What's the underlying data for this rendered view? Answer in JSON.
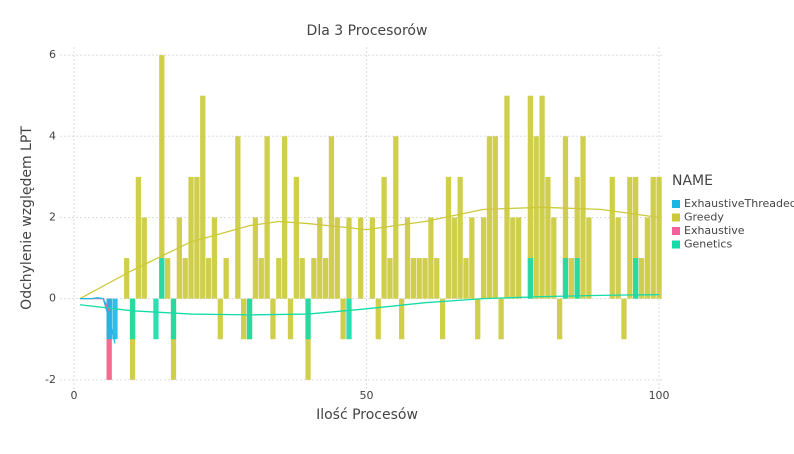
{
  "chart_data": {
    "type": "bar",
    "title": "Dla 3 Procesorów",
    "x_label": "Ilość Procesów",
    "y_label": "Odchylenie względem LPT",
    "legend_title": "NAME",
    "legend_position": "right",
    "grid": true,
    "xlim": [
      -2.4,
      100.5
    ],
    "ylim": [
      -2.3,
      6.2
    ],
    "xticks": [
      0,
      50,
      100
    ],
    "yticks": [
      -2,
      0,
      2,
      4,
      6
    ],
    "series": [
      {
        "name": "ExhaustiveThreaded",
        "color": "#1cb6e5",
        "x": [
          6,
          7
        ],
        "values": [
          -1,
          -1
        ],
        "trend_x": [
          1,
          3,
          4,
          5,
          6,
          7
        ],
        "trend_values": [
          0,
          0,
          0.02,
          0,
          -0.5,
          -1.1
        ]
      },
      {
        "name": "Greedy",
        "color": "#cbc93a",
        "x": [
          1,
          2,
          3,
          4,
          5,
          6,
          7,
          8,
          9,
          10,
          11,
          12,
          13,
          14,
          15,
          16,
          17,
          18,
          19,
          20,
          21,
          22,
          23,
          24,
          25,
          26,
          27,
          28,
          29,
          30,
          31,
          32,
          33,
          34,
          35,
          36,
          37,
          38,
          39,
          40,
          41,
          42,
          43,
          44,
          45,
          46,
          47,
          48,
          49,
          50,
          51,
          52,
          53,
          54,
          55,
          56,
          57,
          58,
          59,
          60,
          61,
          62,
          63,
          64,
          65,
          66,
          67,
          68,
          69,
          70,
          71,
          72,
          73,
          74,
          75,
          76,
          77,
          78,
          79,
          80,
          81,
          82,
          83,
          84,
          85,
          86,
          87,
          88,
          89,
          90,
          91,
          92,
          93,
          94,
          95,
          96,
          97,
          98,
          99,
          100
        ],
        "values": [
          0,
          0,
          0,
          0,
          0,
          -2,
          0,
          0,
          1,
          -2,
          3,
          2,
          0,
          0,
          6,
          1,
          -2,
          2,
          1,
          3,
          3,
          5,
          1,
          2,
          -1,
          1,
          0,
          4,
          -1,
          -1,
          2,
          1,
          4,
          -1,
          1,
          4,
          -1,
          3,
          1,
          -2,
          1,
          2,
          1,
          4,
          2,
          -1,
          2,
          0,
          2,
          0,
          2,
          -1,
          3,
          1,
          4,
          -1,
          2,
          1,
          1,
          1,
          2,
          1,
          -1,
          3,
          2,
          3,
          1,
          2,
          -1,
          2,
          4,
          4,
          -1,
          5,
          2,
          2,
          0,
          5,
          4,
          5,
          3,
          2,
          -1,
          4,
          1,
          3,
          4,
          2,
          0,
          0,
          0,
          3,
          2,
          -1,
          3,
          3,
          1,
          2,
          3,
          3
        ],
        "trend_x": [
          1,
          10,
          20,
          30,
          35,
          40,
          50,
          60,
          70,
          80,
          90,
          100
        ],
        "trend_values": [
          0,
          0.7,
          1.4,
          1.8,
          1.9,
          1.85,
          1.7,
          1.9,
          2.2,
          2.25,
          2.2,
          2.0
        ]
      },
      {
        "name": "Exhaustive",
        "color": "#f5609a",
        "x": [
          6
        ],
        "values": [
          -2
        ],
        "trend_x": [
          1,
          3,
          5,
          6
        ],
        "trend_values": [
          0,
          0,
          0,
          -0.3
        ]
      },
      {
        "name": "Genetics",
        "color": "#15dba9",
        "x": [
          6,
          10,
          14,
          15,
          17,
          30,
          40,
          47,
          78,
          84,
          86,
          96
        ],
        "values": [
          -1,
          -1,
          -1,
          1,
          -1,
          -1,
          -1,
          -1,
          1,
          1,
          1,
          1
        ],
        "trend_x": [
          1,
          10,
          20,
          30,
          40,
          50,
          60,
          70,
          80,
          90,
          100
        ],
        "trend_values": [
          -0.15,
          -0.3,
          -0.38,
          -0.4,
          -0.38,
          -0.25,
          -0.1,
          0,
          0.05,
          0.08,
          0.1
        ]
      }
    ]
  }
}
